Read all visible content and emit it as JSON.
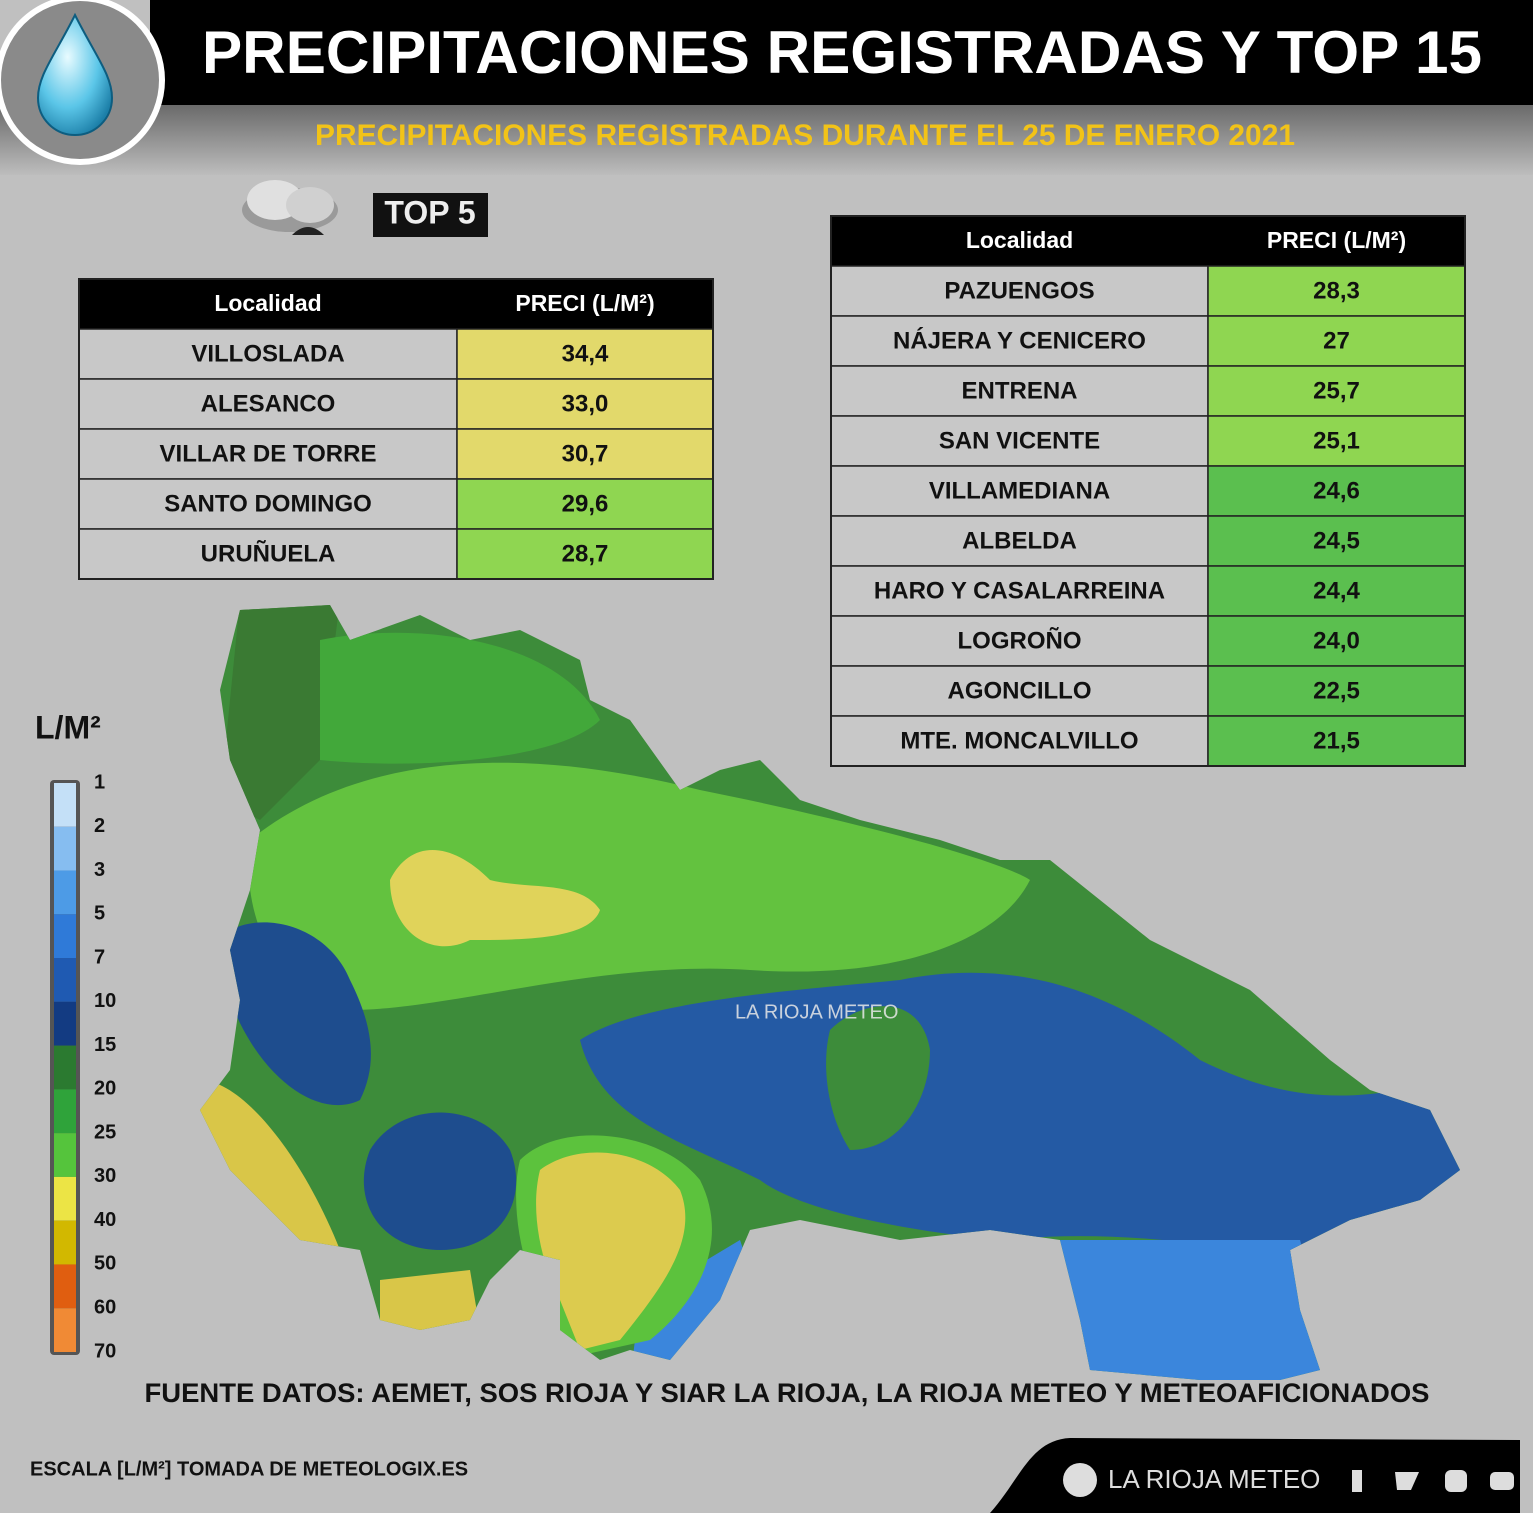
{
  "header": {
    "title": "PRECIPITACIONES REGISTRADAS Y TOP 15",
    "subtitle": "PRECIPITACIONES REGISTRADAS DURANTE EL 25 DE ENERO 2021"
  },
  "top5_badge": "TOP 5",
  "top5": {
    "columns": [
      "Localidad",
      "PRECI (L/M²)"
    ],
    "rows": [
      {
        "name": "VILLOSLADA",
        "value": "34,4",
        "color": "#e2d96b"
      },
      {
        "name": "ALESANCO",
        "value": "33,0",
        "color": "#e2d96b"
      },
      {
        "name": "VILLAR DE TORRE",
        "value": "30,7",
        "color": "#e2d96b"
      },
      {
        "name": "SANTO DOMINGO",
        "value": "29,6",
        "color": "#8fd651"
      },
      {
        "name": "URUÑUELA",
        "value": "28,7",
        "color": "#8fd651"
      }
    ]
  },
  "top15": {
    "columns": [
      "Localidad",
      "PRECI (L/M²)"
    ],
    "rows": [
      {
        "name": "PAZUENGOS",
        "value": "28,3",
        "color": "#8fd651"
      },
      {
        "name": "NÁJERA Y CENICERO",
        "value": "27",
        "color": "#8fd651"
      },
      {
        "name": "ENTRENA",
        "value": "25,7",
        "color": "#8fd651"
      },
      {
        "name": "SAN VICENTE",
        "value": "25,1",
        "color": "#8fd651"
      },
      {
        "name": "VILLAMEDIANA",
        "value": "24,6",
        "color": "#5bbf4f"
      },
      {
        "name": "ALBELDA",
        "value": "24,5",
        "color": "#5bbf4f"
      },
      {
        "name": "HARO Y CASALARREINA",
        "value": "24,4",
        "color": "#5bbf4f"
      },
      {
        "name": "LOGROÑO",
        "value": "24,0",
        "color": "#5bbf4f"
      },
      {
        "name": "AGONCILLO",
        "value": "22,5",
        "color": "#5bbf4f"
      },
      {
        "name": "MTE. MONCALVILLO",
        "value": "21,5",
        "color": "#5bbf4f"
      }
    ]
  },
  "legend": {
    "title": "L/M²",
    "ticks": [
      1,
      2,
      3,
      5,
      7,
      10,
      15,
      20,
      25,
      30,
      40,
      50,
      60,
      70
    ],
    "colors": [
      "#c4e0f7",
      "#86bdf0",
      "#4d9be6",
      "#2f7ad8",
      "#1f5ab2",
      "#133b82",
      "#2b7a30",
      "#2fa33a",
      "#55c43c",
      "#ece445",
      "#d2b800",
      "#e05e10",
      "#f08a35"
    ]
  },
  "watermark": "LA RIOJA METEO",
  "source": "FUENTE DATOS: AEMET, SOS RIOJA Y SIAR LA RIOJA, LA RIOJA METEO Y METEOAFICIONADOS",
  "scale_note": "ESCALA [L/M²] TOMADA DE METEOLOGIX.ES",
  "footer": {
    "brand": "LA RIOJA METEO"
  }
}
